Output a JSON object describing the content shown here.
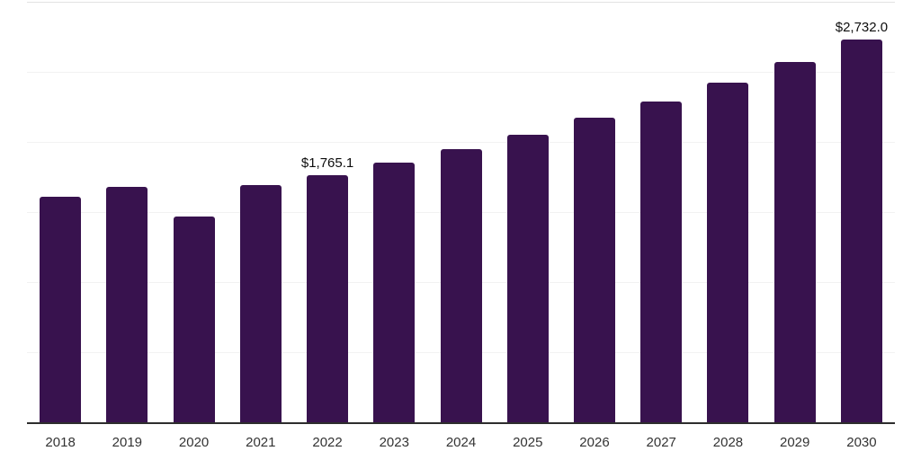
{
  "chart_data": {
    "type": "bar",
    "title": "",
    "xlabel": "",
    "ylabel": "",
    "categories": [
      "2018",
      "2019",
      "2020",
      "2021",
      "2022",
      "2023",
      "2024",
      "2025",
      "2026",
      "2027",
      "2028",
      "2029",
      "2030"
    ],
    "values": [
      1610,
      1680,
      1470,
      1695,
      1765.1,
      1855,
      1950,
      2050,
      2170,
      2290,
      2425,
      2570,
      2732.0
    ],
    "data_labels": [
      "",
      "",
      "",
      "",
      "$1,765.1",
      "",
      "",
      "",
      "",
      "",
      "",
      "",
      "$2,732.0"
    ],
    "ylim": [
      0,
      3000
    ],
    "gridline_values": [
      500,
      1000,
      1500,
      2000,
      2500,
      3000
    ],
    "grid": "on",
    "legend": "none",
    "colors": {
      "bar": "#38124e",
      "axis_line": "#2d2d2d",
      "gridline": "#f2f2f2",
      "top_gridline": "#e3e3e3",
      "tick_label": "#333333",
      "data_label": "#0d0d0d",
      "background": "#ffffff"
    }
  }
}
